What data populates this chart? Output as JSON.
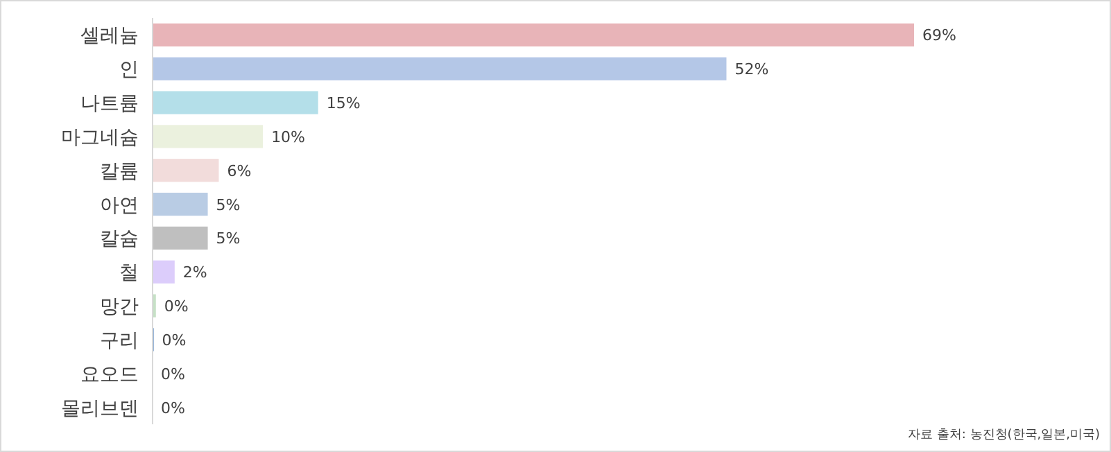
{
  "chart_data": {
    "type": "bar",
    "orientation": "horizontal",
    "categories": [
      "셀레늄",
      "인",
      "나트륨",
      "마그네슘",
      "칼륨",
      "아연",
      "칼슘",
      "철",
      "망간",
      "구리",
      "요오드",
      "몰리브덴"
    ],
    "values": [
      69,
      52,
      15,
      10,
      6,
      5,
      5,
      2,
      0.3,
      0.1,
      0,
      0
    ],
    "value_labels": [
      "69%",
      "52%",
      "15%",
      "10%",
      "6%",
      "5%",
      "5%",
      "2%",
      "0%",
      "0%",
      "0%",
      "0%"
    ],
    "colors": [
      "#e8b4b8",
      "#b4c7e7",
      "#b4dfe9",
      "#ebf1de",
      "#f2dcdb",
      "#b9cce4",
      "#bfbfbf",
      "#dccdfb",
      "#c6e0c6",
      "#4f81bd",
      "#dddddd",
      "#dddddd"
    ],
    "annotations": [
      "자료 출처: 농진청(한국,일본,미국)"
    ]
  }
}
